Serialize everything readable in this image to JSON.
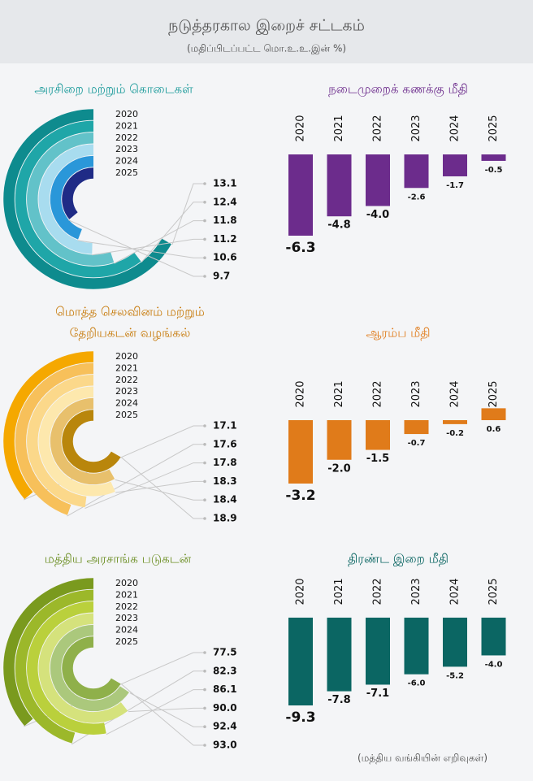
{
  "header": {
    "title": "நடுத்தரகால இறைச் சட்டகம்",
    "subtitle": "(மதிப்பிடப்பட்ட மொ.உ.உ.இன் %)"
  },
  "chart_data": [
    {
      "type": "radial",
      "title": [
        "அரசிறை மற்றும் கொடைகள்"
      ],
      "categories": [
        "2020",
        "2021",
        "2022",
        "2023",
        "2024",
        "2025"
      ],
      "values": [
        13.1,
        12.4,
        11.8,
        11.2,
        10.6,
        9.7
      ],
      "value_labels": [
        "13.1",
        "12.4",
        "11.8",
        "11.2",
        "10.6",
        "9.7"
      ],
      "colors": [
        "#0e8b8e",
        "#1fa6a8",
        "#62c2c9",
        "#a8dcef",
        "#2a97d9",
        "#1f2b86"
      ],
      "title_color": "#1a9a9a"
    },
    {
      "type": "bar",
      "title": [
        "நடைமுறைக் கணக்கு மீதி"
      ],
      "categories": [
        "2020",
        "2021",
        "2022",
        "2023",
        "2024",
        "2025"
      ],
      "values": [
        -6.3,
        -4.8,
        -4.0,
        -2.6,
        -1.7,
        -0.5
      ],
      "value_labels": [
        "-6.3",
        "-4.8",
        "-4.0",
        "-2.6",
        "-1.7",
        "-0.5"
      ],
      "color": "#6c2c8c",
      "title_color": "#6c2c8c"
    },
    {
      "type": "radial",
      "title": [
        "மொத்த செலவினம் மற்றும்",
        "தேறியகடன் வழங்கல்"
      ],
      "categories": [
        "2020",
        "2021",
        "2022",
        "2023",
        "2024",
        "2025"
      ],
      "values": [
        17.1,
        17.6,
        17.8,
        18.3,
        18.4,
        18.9
      ],
      "value_labels": [
        "17.1",
        "17.6",
        "17.8",
        "18.3",
        "18.4",
        "18.9"
      ],
      "colors": [
        "#f5a800",
        "#f7c05a",
        "#fbd88a",
        "#fde8ad",
        "#e8c06c",
        "#b9860c"
      ],
      "title_color": "#c77a0a"
    },
    {
      "type": "bar",
      "title": [
        "ஆரம்ப மீதி"
      ],
      "categories": [
        "2020",
        "2021",
        "2022",
        "2023",
        "2024",
        "2025"
      ],
      "values": [
        -3.2,
        -2.0,
        -1.5,
        -0.7,
        -0.2,
        0.6
      ],
      "value_labels": [
        "-3.2",
        "-2.0",
        "-1.5",
        "-0.7",
        "-0.2",
        "0.6"
      ],
      "color": "#e07b1a",
      "title_color": "#e07b1a"
    },
    {
      "type": "radial",
      "title": [
        "மத்திய அரசாங்க படுகடன்"
      ],
      "categories": [
        "2020",
        "2021",
        "2022",
        "2023",
        "2024",
        "2025"
      ],
      "values": [
        77.5,
        82.3,
        86.1,
        90.0,
        92.4,
        93.0
      ],
      "value_labels": [
        "77.5",
        "82.3",
        "86.1",
        "90.0",
        "92.4",
        "93.0"
      ],
      "colors": [
        "#7a9a1e",
        "#9cb82a",
        "#bad03c",
        "#d5e27c",
        "#abc87c",
        "#8fb04a"
      ],
      "title_color": "#6b8e23"
    },
    {
      "type": "bar",
      "title": [
        "திரண்ட இறை மீதி"
      ],
      "categories": [
        "2020",
        "2021",
        "2022",
        "2023",
        "2024",
        "2025"
      ],
      "values": [
        -9.3,
        -7.8,
        -7.1,
        -6.0,
        -5.2,
        -4.0
      ],
      "value_labels": [
        "-9.3",
        "-7.8",
        "-7.1",
        "-6.0",
        "-5.2",
        "-4.0"
      ],
      "color": "#0b6663",
      "title_color": "#0b6663"
    }
  ],
  "source": "(மத்திய வங்கியின் எறிவுகள்)"
}
